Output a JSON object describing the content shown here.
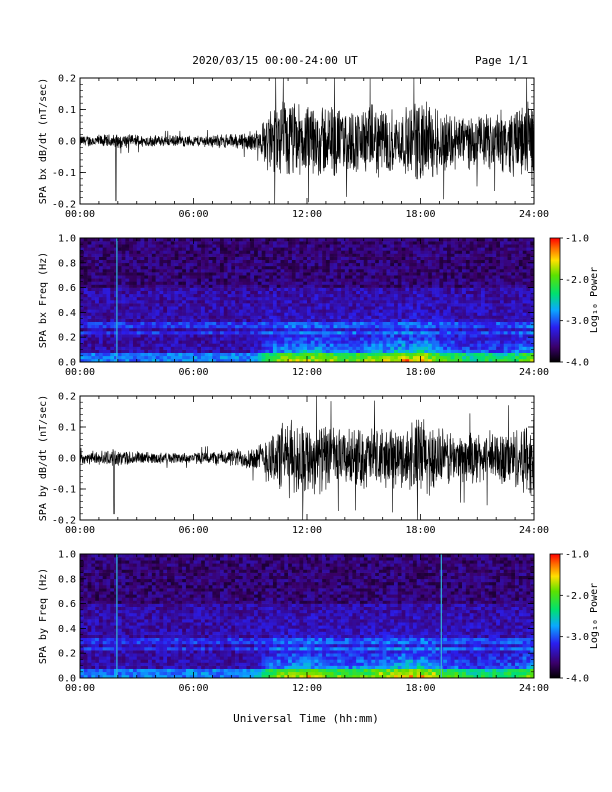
{
  "header": {
    "date_range": "2020/03/15  00:00-24:00 UT",
    "page": "Page 1/1"
  },
  "xlabel": "Universal Time (hh:mm)",
  "chart_data": [
    {
      "type": "line",
      "ylabel": "SPA bx dB/dt (nT/sec)",
      "x_ticks": [
        "00:00",
        "06:00",
        "12:00",
        "18:00",
        "24:00"
      ],
      "xlim": [
        0,
        24
      ],
      "ylim": [
        -0.2,
        0.2
      ],
      "y_ticks": [
        "0.2",
        "0.1",
        "0.0",
        "-0.1",
        "-0.2"
      ],
      "series": [
        {
          "values_envelope": {
            "x": [
              0,
              2,
              4,
              6,
              8,
              9.5,
              10,
              11,
              12,
              13,
              14,
              15,
              16,
              17,
              18,
              19,
              20,
              21,
              22,
              23,
              24
            ],
            "amplitude": [
              0.02,
              0.025,
              0.02,
              0.02,
              0.025,
              0.04,
              0.12,
              0.15,
              0.12,
              0.14,
              0.11,
              0.12,
              0.13,
              0.1,
              0.16,
              0.12,
              0.1,
              0.09,
              0.1,
              0.12,
              0.15
            ]
          },
          "color": "#000000"
        }
      ]
    },
    {
      "type": "heatmap",
      "ylabel": "SPA bx Freq (Hz)",
      "x_ticks": [
        "00:00",
        "06:00",
        "12:00",
        "18:00",
        "24:00"
      ],
      "xlim": [
        0,
        24
      ],
      "ylim": [
        0.0,
        1.0
      ],
      "y_ticks": [
        "1.0",
        "0.8",
        "0.6",
        "0.4",
        "0.2",
        "0.0"
      ],
      "colorbar": {
        "label": "Log₁₀ Power",
        "ticks": [
          "-1.0",
          "-2.0",
          "-3.0",
          "-4.0"
        ],
        "range": [
          -4.0,
          -1.0
        ]
      }
    },
    {
      "type": "line",
      "ylabel": "SPA by dB/dt (nT/sec)",
      "x_ticks": [
        "00:00",
        "06:00",
        "12:00",
        "18:00",
        "24:00"
      ],
      "xlim": [
        0,
        24
      ],
      "ylim": [
        -0.2,
        0.2
      ],
      "y_ticks": [
        "0.2",
        "0.1",
        "0.0",
        "-0.1",
        "-0.2"
      ],
      "series": [
        {
          "values_envelope": {
            "x": [
              0,
              2,
              4,
              6,
              8,
              9.5,
              10,
              11,
              12,
              13,
              14,
              15,
              16,
              17,
              18,
              19,
              20,
              21,
              22,
              23,
              24
            ],
            "amplitude": [
              0.02,
              0.03,
              0.02,
              0.02,
              0.03,
              0.05,
              0.1,
              0.14,
              0.13,
              0.12,
              0.1,
              0.11,
              0.12,
              0.1,
              0.16,
              0.11,
              0.09,
              0.09,
              0.1,
              0.11,
              0.15
            ]
          },
          "color": "#000000"
        }
      ]
    },
    {
      "type": "heatmap",
      "ylabel": "SPA by Freq (Hz)",
      "x_ticks": [
        "00:00",
        "06:00",
        "12:00",
        "18:00",
        "24:00"
      ],
      "xlim": [
        0,
        24
      ],
      "ylim": [
        0.0,
        1.0
      ],
      "y_ticks": [
        "1.0",
        "0.8",
        "0.6",
        "0.4",
        "0.2",
        "0.0"
      ],
      "colorbar": {
        "label": "Log₁₀ Power",
        "ticks": [
          "-1.0",
          "-2.0",
          "-3.0",
          "-4.0"
        ],
        "range": [
          -4.0,
          -1.0
        ]
      }
    }
  ]
}
